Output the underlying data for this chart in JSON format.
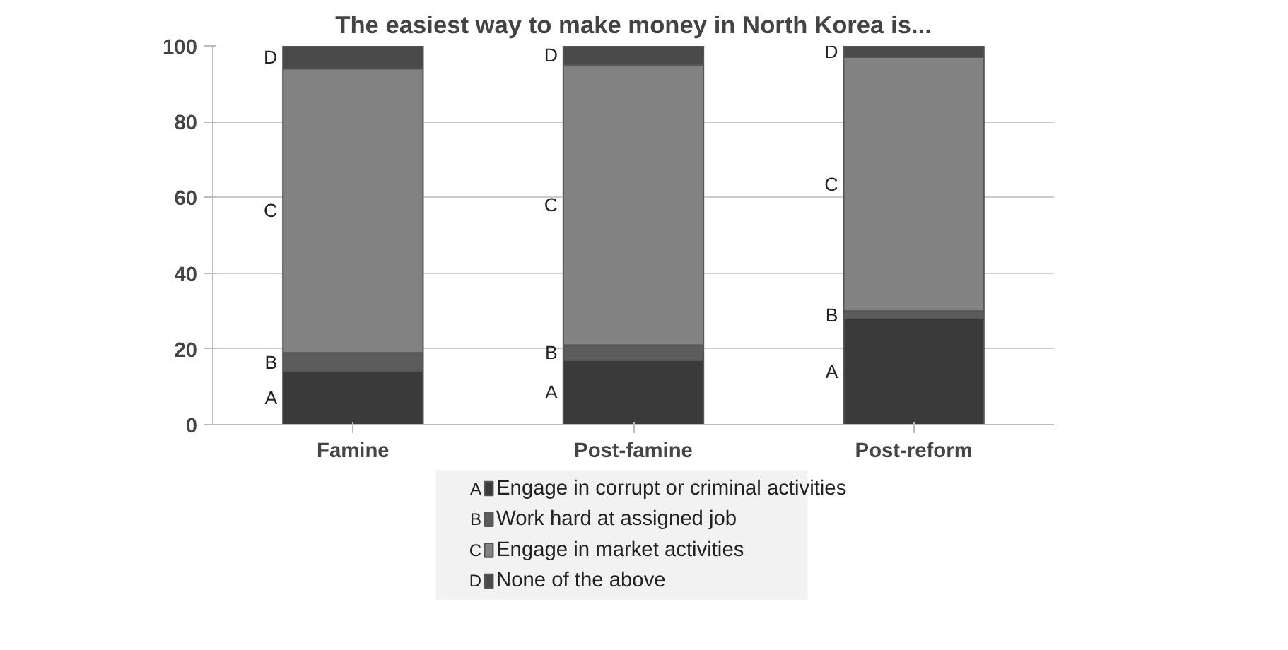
{
  "chart_data": {
    "type": "bar",
    "stacked": true,
    "title": "The easiest way to make money in North Korea is...",
    "categories": [
      "Famine",
      "Post-famine",
      "Post-reform"
    ],
    "series": [
      {
        "name": "Engage in corrupt or criminal activities",
        "color": "#3a3a3a",
        "values": [
          14,
          17,
          28
        ]
      },
      {
        "name": "Work hard at assigned job",
        "color": "#5c5c5c",
        "values": [
          5,
          4,
          2
        ]
      },
      {
        "name": "Engage in market activities",
        "color": "#828282",
        "values": [
          75,
          74,
          67
        ]
      },
      {
        "name": "None of the above",
        "color": "#4a4a4a",
        "values": [
          6,
          5,
          3
        ]
      }
    ],
    "ylim": [
      0,
      100
    ],
    "yticks": [
      0,
      20,
      40,
      60,
      80,
      100
    ],
    "grid": "y",
    "legend": "bottom",
    "annotations": [
      "A",
      "B",
      "C",
      "D"
    ]
  }
}
